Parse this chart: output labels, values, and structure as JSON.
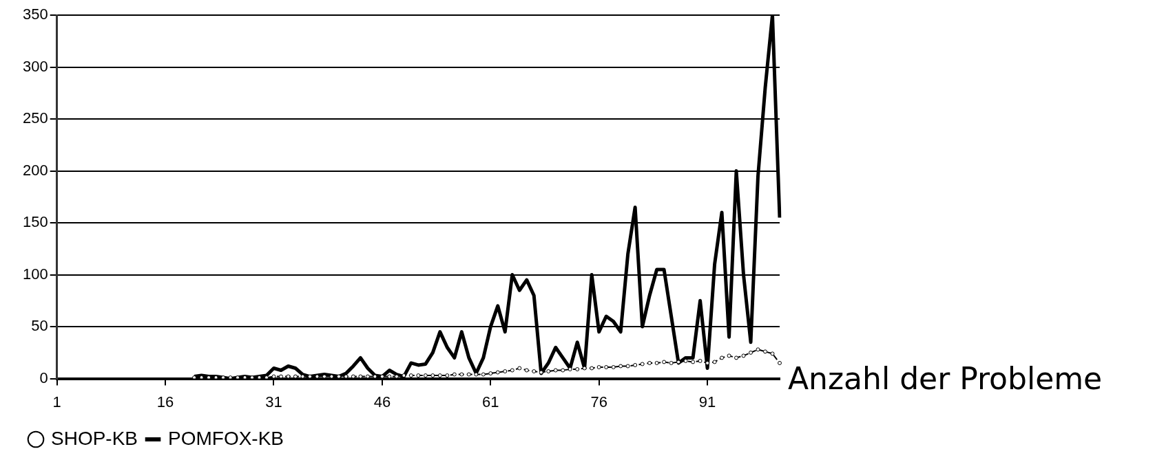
{
  "chart_data": {
    "type": "line",
    "xlabel": "Anzahl der Probleme",
    "categories": [
      "1",
      null,
      null,
      null,
      null,
      null,
      null,
      null,
      null,
      null,
      null,
      null,
      null,
      null,
      null,
      "16",
      null,
      null,
      null,
      null,
      null,
      null,
      null,
      null,
      null,
      null,
      null,
      null,
      null,
      null,
      "31",
      null,
      null,
      null,
      null,
      null,
      null,
      null,
      null,
      null,
      null,
      null,
      null,
      null,
      null,
      "46",
      null,
      null,
      null,
      null,
      null,
      null,
      null,
      null,
      null,
      null,
      null,
      null,
      null,
      null,
      "61",
      null,
      null,
      null,
      null,
      null,
      null,
      null,
      null,
      null,
      null,
      null,
      null,
      null,
      null,
      "76",
      null,
      null,
      null,
      null,
      null,
      null,
      null,
      null,
      null,
      null,
      null,
      null,
      null,
      null,
      "91",
      null,
      null,
      null,
      null,
      null,
      null,
      null,
      null,
      null,
      null
    ],
    "series": [
      {
        "name": "SHOP-KB",
        "color": "#000000",
        "marker": "circle",
        "line_style": "dashed",
        "values": [
          null,
          null,
          null,
          null,
          null,
          null,
          null,
          null,
          null,
          null,
          null,
          null,
          null,
          null,
          null,
          null,
          null,
          null,
          null,
          1,
          1,
          1,
          1,
          1,
          1,
          1,
          1,
          1,
          1,
          1,
          2,
          2,
          2,
          2,
          2,
          2,
          2,
          2,
          2,
          2,
          2,
          2,
          2,
          2,
          2,
          2,
          2,
          2,
          3,
          3,
          3,
          3,
          3,
          3,
          3,
          4,
          4,
          4,
          4,
          4,
          5,
          6,
          7,
          8,
          10,
          8,
          7,
          6,
          7,
          8,
          8,
          9,
          9,
          10,
          10,
          11,
          11,
          11,
          12,
          12,
          13,
          14,
          15,
          15,
          16,
          15,
          16,
          17,
          16,
          17,
          15,
          16,
          20,
          22,
          20,
          22,
          25,
          28,
          26,
          24,
          15
        ]
      },
      {
        "name": "POMFOX-KB",
        "color": "#000000",
        "marker": "none",
        "line_style": "solid",
        "values": [
          null,
          null,
          null,
          null,
          null,
          null,
          null,
          null,
          null,
          null,
          null,
          null,
          null,
          null,
          null,
          null,
          null,
          null,
          null,
          2,
          3,
          2,
          2,
          1,
          0,
          1,
          2,
          1,
          2,
          3,
          10,
          8,
          12,
          10,
          4,
          2,
          3,
          4,
          3,
          2,
          5,
          12,
          20,
          10,
          3,
          2,
          8,
          4,
          2,
          15,
          13,
          14,
          25,
          45,
          30,
          20,
          45,
          20,
          5,
          20,
          50,
          70,
          45,
          100,
          85,
          95,
          80,
          5,
          15,
          30,
          20,
          10,
          35,
          10,
          100,
          45,
          60,
          55,
          45,
          120,
          165,
          50,
          80,
          105,
          105,
          60,
          15,
          20,
          20,
          75,
          10,
          110,
          160,
          40,
          200,
          100,
          35,
          195,
          280,
          350,
          155
        ]
      }
    ],
    "ylim": [
      0,
      350
    ],
    "yticks": [
      0,
      50,
      100,
      150,
      200,
      250,
      300,
      350
    ],
    "grid": "y",
    "legend": "bottom"
  }
}
